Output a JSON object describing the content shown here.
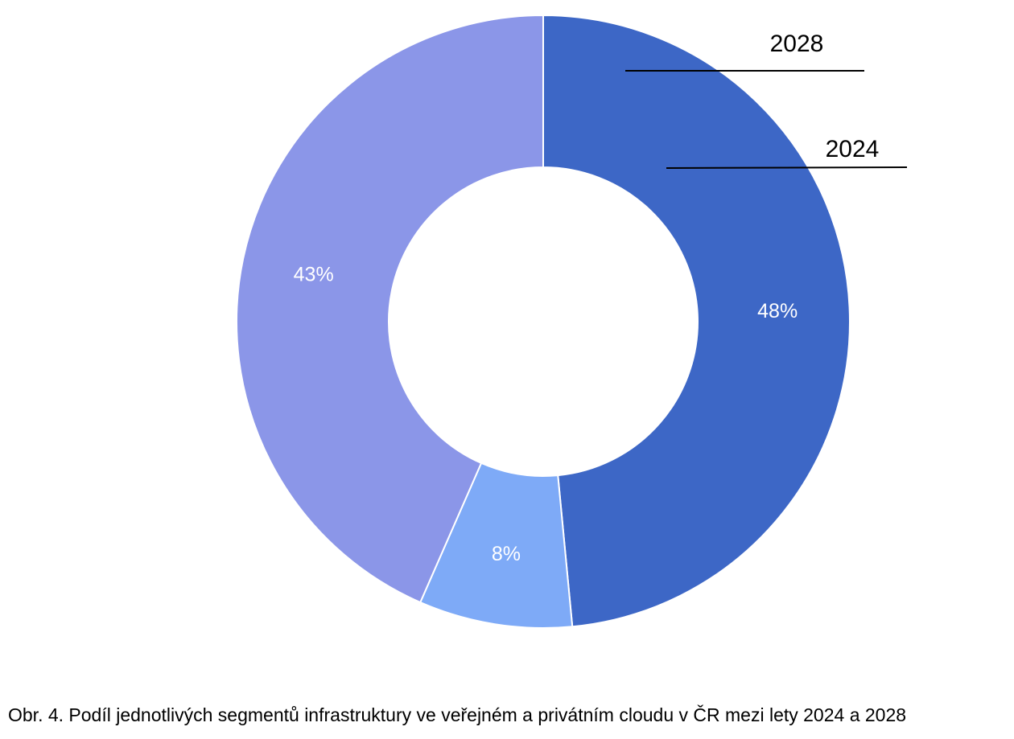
{
  "caption": "Obr. 4. Podíl jednotlivých segmentů infrastruktury ve veřejném a privátním cloudu v ČR mezi lety 2024 a 2028",
  "chart_data": {
    "type": "pie",
    "variant": "donut",
    "title": "",
    "slices": [
      {
        "label": "48%",
        "value": 48,
        "color": "#3d67c6"
      },
      {
        "label": "8%",
        "value": 8,
        "color": "#7eaaf7"
      },
      {
        "label": "43%",
        "value": 43,
        "color": "#8b96e8"
      }
    ],
    "annotations": [
      "2028",
      "2024"
    ],
    "legend": "none",
    "grid": false
  }
}
